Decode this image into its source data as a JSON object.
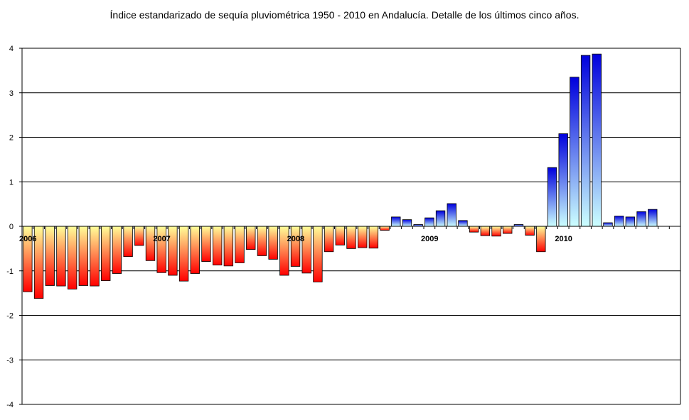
{
  "chart_data": {
    "type": "bar",
    "title": "Índice estandarizado de sequía pluviométrica 1950 - 2010 en Andalucía.  Detalle de los últimos cinco años.",
    "xlabel": "",
    "ylabel": "",
    "ylim": [
      -4,
      4
    ],
    "yticks": [
      4,
      3,
      2,
      1,
      0,
      -1,
      -2,
      -3,
      -4
    ],
    "grid": true,
    "legend": "none",
    "year_labels": [
      {
        "label": "2006",
        "index": 0
      },
      {
        "label": "2007",
        "index": 12
      },
      {
        "label": "2008",
        "index": 24
      },
      {
        "label": "2009",
        "index": 36
      },
      {
        "label": "2010",
        "index": 48
      }
    ],
    "months_per_year": 12,
    "total_slots": 59,
    "values": [
      -1.47,
      -1.62,
      -1.33,
      -1.34,
      -1.41,
      -1.33,
      -1.34,
      -1.22,
      -1.06,
      -0.68,
      -0.43,
      -0.77,
      -1.04,
      -1.1,
      -1.23,
      -1.06,
      -0.79,
      -0.87,
      -0.89,
      -0.82,
      -0.52,
      -0.66,
      -0.74,
      -1.1,
      -0.9,
      -1.05,
      -1.25,
      -0.57,
      -0.42,
      -0.5,
      -0.48,
      -0.49,
      -0.09,
      0.21,
      0.15,
      0.04,
      0.19,
      0.35,
      0.51,
      0.13,
      -0.13,
      -0.21,
      -0.22,
      -0.16,
      0.04,
      -0.2,
      -0.57,
      1.32,
      2.08,
      3.35,
      3.84,
      3.87,
      0.08,
      0.23,
      0.21,
      0.33,
      0.38
    ],
    "colors": {
      "negative_top": "#ffff99",
      "negative_bottom": "#ff0000",
      "positive_top": "#0000dd",
      "positive_bottom": "#ccffff",
      "bar_stroke": "#000000",
      "grid": "#000000"
    }
  }
}
